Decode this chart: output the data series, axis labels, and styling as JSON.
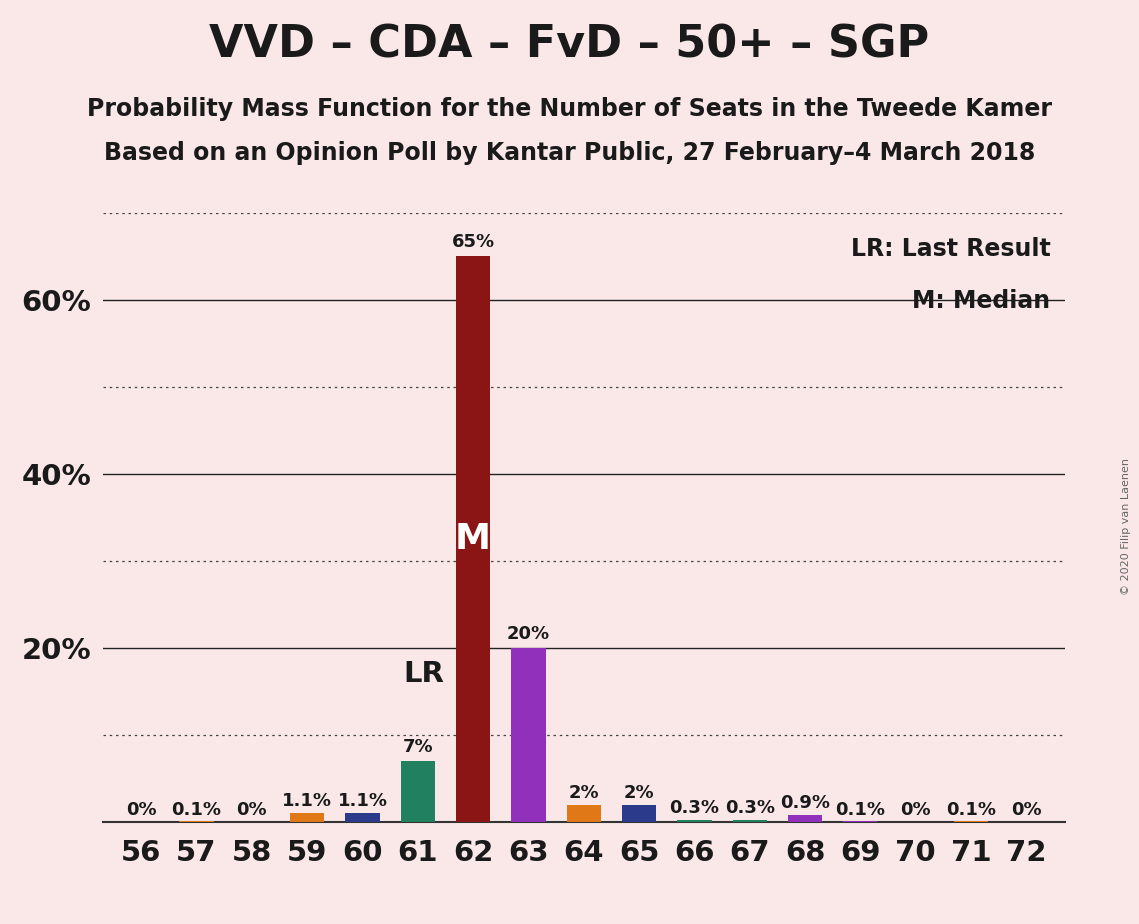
{
  "title": "VVD – CDA – FvD – 50+ – SGP",
  "subtitle1": "Probability Mass Function for the Number of Seats in the Tweede Kamer",
  "subtitle2": "Based on an Opinion Poll by Kantar Public, 27 February–4 March 2018",
  "copyright": "© 2020 Filip van Laenen",
  "seats": [
    56,
    57,
    58,
    59,
    60,
    61,
    62,
    63,
    64,
    65,
    66,
    67,
    68,
    69,
    70,
    71,
    72
  ],
  "probabilities": [
    0.0,
    0.1,
    0.0,
    1.1,
    1.1,
    7.0,
    65.0,
    20.0,
    2.0,
    2.0,
    0.3,
    0.3,
    0.9,
    0.1,
    0.0,
    0.1,
    0.0
  ],
  "bar_colors": [
    "#E07818",
    "#E07818",
    "#E07818",
    "#E07818",
    "#2B3A8A",
    "#208060",
    "#8B1515",
    "#9030BB",
    "#E07818",
    "#2B3A8A",
    "#208060",
    "#208060",
    "#9030BB",
    "#9030BB",
    "#E07818",
    "#E07818",
    "#E07818"
  ],
  "lr_seat": 62,
  "median_seat": 62,
  "background_color": "#FAE8E8",
  "bar_width": 0.62,
  "ylim_max": 70,
  "solid_yticks": [
    20,
    40,
    60
  ],
  "dotted_yticks": [
    10,
    30,
    50,
    70
  ],
  "legend_lr": "LR: Last Result",
  "legend_m": "M: Median",
  "title_fontsize": 32,
  "subtitle_fontsize": 17,
  "axis_tick_fontsize": 21,
  "bar_label_fontsize": 13,
  "lr_label_fontsize": 21,
  "m_label_fontsize": 26,
  "legend_fontsize": 17,
  "copyright_fontsize": 8
}
